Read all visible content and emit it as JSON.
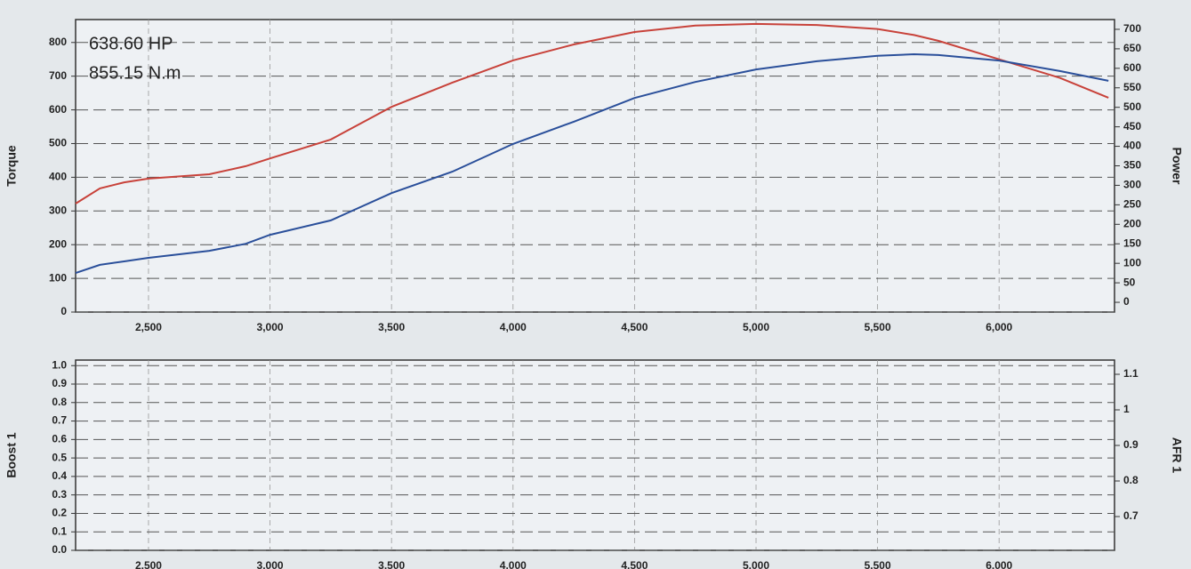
{
  "chart_data": [
    {
      "type": "line",
      "xlim": [
        2200,
        6475
      ],
      "xticks": [
        {
          "value": 2500,
          "label": "2,500"
        },
        {
          "value": 3000,
          "label": "3,000"
        },
        {
          "value": 3500,
          "label": "3,500"
        },
        {
          "value": 4000,
          "label": "4,000"
        },
        {
          "value": 4500,
          "label": "4,500"
        },
        {
          "value": 5000,
          "label": "5,000"
        },
        {
          "value": 5500,
          "label": "5,500"
        },
        {
          "value": 6000,
          "label": "6,000"
        }
      ],
      "ylabel": "Torque",
      "ylabel_color": "#c0392b",
      "ylim": [
        0,
        868
      ],
      "yticks": [
        0,
        100,
        200,
        300,
        400,
        500,
        600,
        700,
        800
      ],
      "y2label": "Power",
      "y2label_color": "#c0392b",
      "y2lim": [
        -25,
        725
      ],
      "y2ticks": [
        0,
        50,
        100,
        150,
        200,
        250,
        300,
        350,
        400,
        450,
        500,
        550,
        600,
        650,
        700
      ],
      "grid": true,
      "annotations": [
        {
          "text": "638.60 HP",
          "color": "#1f4e9c"
        },
        {
          "text": "855.15 N.m",
          "color": "#c0392b"
        }
      ],
      "x": [
        2200,
        2300,
        2400,
        2500,
        2750,
        2900,
        3000,
        3250,
        3500,
        3750,
        4000,
        4250,
        4500,
        4750,
        5000,
        5250,
        5500,
        5650,
        5750,
        6000,
        6250,
        6450
      ],
      "series": [
        {
          "name": "Torque",
          "color": "#c8423a",
          "values": [
            322,
            367,
            385,
            396,
            409,
            433,
            456,
            512,
            609,
            681,
            747,
            794,
            831,
            850,
            855,
            852,
            840,
            822,
            805,
            750,
            695,
            636
          ]
        },
        {
          "name": "Power",
          "color": "#2a4f9a",
          "axis": "y2",
          "values": [
            75,
            96,
            105,
            114,
            132,
            150,
            173,
            210,
            280,
            335,
            406,
            463,
            524,
            565,
            597,
            618,
            632,
            636,
            634,
            620,
            593,
            568
          ]
        }
      ]
    },
    {
      "type": "line",
      "xlim": [
        2200,
        6475
      ],
      "xticks": [
        {
          "value": 2500,
          "label": "2,500"
        },
        {
          "value": 3000,
          "label": "3,000"
        },
        {
          "value": 3500,
          "label": "3,500"
        },
        {
          "value": 4000,
          "label": "4,000"
        },
        {
          "value": 4500,
          "label": "4,500"
        },
        {
          "value": 5000,
          "label": "5,000"
        },
        {
          "value": 5500,
          "label": "5,500"
        },
        {
          "value": 6000,
          "label": "6,000"
        }
      ],
      "ylabel": "Boost 1",
      "ylabel_color": "#1f4e9c",
      "ylim": [
        0,
        1.03
      ],
      "yticks": [
        {
          "value": 0,
          "label": "0.0"
        },
        0.1,
        0.2,
        0.3,
        0.4,
        0.5,
        0.6,
        0.7,
        0.8,
        0.9,
        {
          "value": 1,
          "label": "1.0"
        }
      ],
      "y2label": "AFR 1",
      "y2label_color": "#c0392b",
      "y2lim": [
        0.605,
        1.14
      ],
      "y2ticks": [
        0.7,
        0.8,
        0.9,
        1,
        1.1
      ],
      "grid": true
    }
  ]
}
